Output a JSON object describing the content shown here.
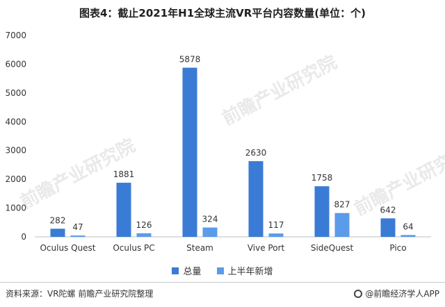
{
  "chart_data": {
    "type": "bar",
    "title": "图表4：截止2021年H1全球主流VR平台内容数量(单位：个)",
    "categories": [
      "Oculus Quest",
      "Oculus PC",
      "Steam",
      "Vive Port",
      "SideQuest",
      "Pico"
    ],
    "series": [
      {
        "name": "总量",
        "values": [
          282,
          1881,
          5878,
          2630,
          1758,
          642
        ],
        "color": "#3a7bd5"
      },
      {
        "name": "上半年新增",
        "values": [
          47,
          126,
          324,
          117,
          827,
          64
        ],
        "color": "#5b9bea"
      }
    ],
    "ylim": [
      0,
      7000
    ],
    "yticks": [
      0,
      1000,
      2000,
      3000,
      4000,
      5000,
      6000,
      7000
    ],
    "grid": false,
    "legend": "bottom"
  },
  "footer": {
    "source": "资料来源：VR陀螺 前瞻产业研究院整理",
    "brand": "@前瞻经济学人APP"
  },
  "watermark": {
    "text": "前瞻产业研究院"
  }
}
